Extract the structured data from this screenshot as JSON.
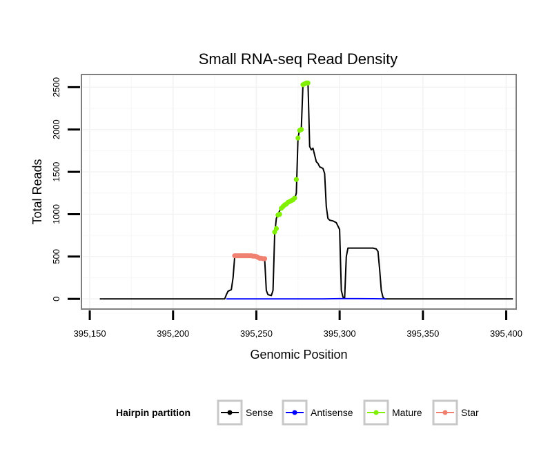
{
  "chart_data": {
    "type": "line",
    "title": "Small RNA-seq Read Density",
    "xlabel": "Genomic Position",
    "ylabel": "Total Reads",
    "xlim": [
      395145,
      395406
    ],
    "ylim": [
      -120,
      2650
    ],
    "xticks": [
      395150,
      395200,
      395250,
      395300,
      395350,
      395400
    ],
    "xtick_labels": [
      "395,150",
      "395,200",
      "395,250",
      "395,300",
      "395,350",
      "395,400"
    ],
    "yticks": [
      0,
      500,
      1000,
      1500,
      2000,
      2500
    ],
    "ytick_labels": [
      "0",
      "500",
      "1000",
      "1500",
      "2000",
      "2500"
    ],
    "grid": true,
    "legend": {
      "title": "Hairpin partition",
      "position": "bottom",
      "entries": [
        "Sense",
        "Antisense",
        "Mature",
        "Star"
      ]
    },
    "series": [
      {
        "name": "Sense",
        "color": "#000000",
        "marker": "none",
        "x": [
          395156,
          395231,
          395232,
          395233,
          395235,
          395236,
          395237,
          395238,
          395240,
          395245,
          395250,
          395252,
          395254,
          395255,
          395256,
          395257,
          395259,
          395260,
          395261,
          395262,
          395263,
          395265,
          395267,
          395269,
          395271,
          395273,
          395274,
          395275,
          395276,
          395277,
          395278,
          395279,
          395280,
          395281,
          395282,
          395283,
          395284,
          395285,
          395286,
          395287,
          395288,
          395289,
          395290,
          395291,
          395292,
          395293,
          395294,
          395296,
          395298,
          395300,
          395301,
          395302,
          395303,
          395304,
          395305,
          395306,
          395310,
          395315,
          395320,
          395322,
          395323,
          395324,
          395325,
          395326,
          395327,
          395330,
          395404
        ],
        "y": [
          0,
          0,
          50,
          90,
          110,
          250,
          500,
          510,
          510,
          505,
          500,
          490,
          480,
          470,
          100,
          50,
          40,
          100,
          760,
          950,
          1000,
          1080,
          1120,
          1130,
          1150,
          1180,
          1250,
          1900,
          2000,
          2010,
          2530,
          2550,
          2560,
          2550,
          1800,
          1760,
          1780,
          1700,
          1620,
          1600,
          1560,
          1550,
          1540,
          1480,
          1090,
          950,
          930,
          920,
          900,
          820,
          100,
          20,
          10,
          500,
          600,
          600,
          600,
          600,
          600,
          590,
          560,
          350,
          100,
          20,
          0,
          0,
          0
        ]
      },
      {
        "name": "Antisense",
        "color": "#0000ff",
        "marker": "none",
        "x": [
          395232,
          395260,
          395290,
          395300,
          395310,
          395320,
          395328
        ],
        "y": [
          0,
          0,
          0,
          3,
          3,
          2,
          0
        ]
      },
      {
        "name": "Mature",
        "color": "#80f000",
        "marker": "point",
        "x": [
          395261,
          395262,
          395263,
          395264,
          395265,
          395266,
          395267,
          395268,
          395269,
          395270,
          395271,
          395272,
          395273,
          395274,
          395275,
          395276,
          395277,
          395278,
          395279,
          395280,
          395281
        ],
        "y": [
          790,
          830,
          990,
          1000,
          1070,
          1090,
          1110,
          1120,
          1140,
          1150,
          1160,
          1170,
          1190,
          1410,
          1900,
          1990,
          2000,
          2530,
          2540,
          2550,
          2550
        ]
      },
      {
        "name": "Star",
        "color": "#f08070",
        "marker": "point",
        "x": [
          395237,
          395238,
          395239,
          395240,
          395241,
          395242,
          395243,
          395244,
          395245,
          395246,
          395247,
          395248,
          395249,
          395250,
          395251,
          395252,
          395253,
          395254,
          395255
        ],
        "y": [
          510,
          510,
          510,
          510,
          510,
          510,
          510,
          510,
          510,
          510,
          510,
          505,
          505,
          500,
          490,
          480,
          480,
          475,
          475
        ]
      }
    ]
  }
}
